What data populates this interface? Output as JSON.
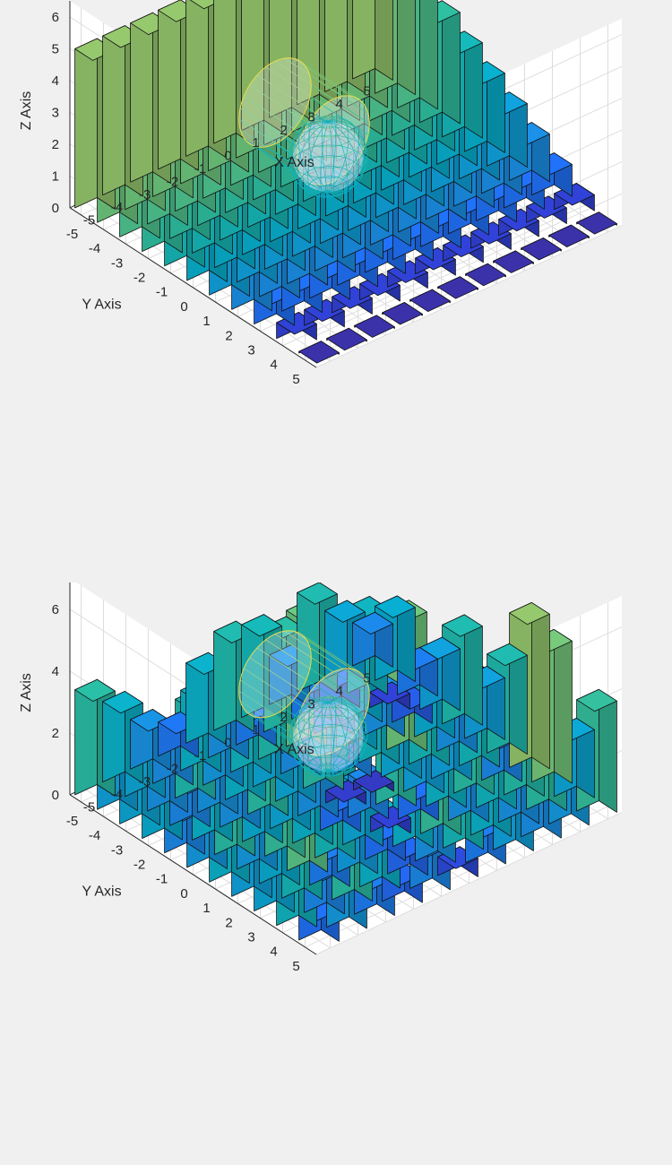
{
  "chart_data": [
    {
      "type": "bar3d",
      "xlabel": "X Axis",
      "ylabel": "Y Axis",
      "zlabel": "Z Axis",
      "x_ticks": [
        -5,
        -4,
        -3,
        -2,
        -1,
        0,
        1,
        2,
        3,
        4,
        5
      ],
      "y_ticks": [
        -5,
        -4,
        -3,
        -2,
        -1,
        0,
        1,
        2,
        3,
        4,
        5
      ],
      "z_ticks": [
        0,
        1,
        2,
        3,
        4,
        5,
        6
      ],
      "xlim": [
        -5.5,
        5.5
      ],
      "ylim": [
        -5.5,
        5.5
      ],
      "zlim": [
        0,
        6.5
      ],
      "grid": true,
      "heights_rule": "height grows with y: 0 at y=5 up to 5 at y=-5 (each bar row spans all x)",
      "row_heights_by_y": {
        "5": 0.05,
        "4": 0.5,
        "3": 1.0,
        "2": 1.5,
        "1": 2.0,
        "0": 2.5,
        "-1": 3.0,
        "-2": 3.5,
        "-3": 4.0,
        "-4": 4.5,
        "-5": 5.0
      },
      "cylinder": {
        "axis": "y",
        "center_x": -1.5,
        "center_z": 3.6,
        "radius": 1.3,
        "y_from": -1.3,
        "y_to": 1.3
      },
      "sphere": {
        "center": [
          -0.8,
          0.2,
          2.3
        ],
        "radius": 1.1
      }
    },
    {
      "type": "bar3d",
      "xlabel": "X Axis",
      "ylabel": "Y Axis",
      "zlabel": "Z Axis",
      "x_ticks": [
        -5,
        -4,
        -3,
        -2,
        -1,
        0,
        1,
        2,
        3,
        4,
        5
      ],
      "y_ticks": [
        -5,
        -4,
        -3,
        -2,
        -1,
        0,
        1,
        2,
        3,
        4,
        5
      ],
      "z_ticks": [
        0,
        2,
        4,
        6
      ],
      "xlim": [
        -5.5,
        5.5
      ],
      "ylim": [
        -5.5,
        5.5
      ],
      "zlim": [
        0,
        7
      ],
      "grid": true,
      "grid_heights_y_desc_x_asc": [
        [
          1.0,
          1.8,
          1.2,
          0.9,
          1.4,
          0.6,
          1.2,
          2.0,
          1.5,
          1.8,
          3.6
        ],
        [
          2.8,
          1.4,
          3.4,
          2.6,
          0.9,
          1.6,
          3.0,
          2.6,
          1.6,
          3.4,
          2.2
        ],
        [
          2.2,
          3.0,
          1.2,
          1.9,
          1.0,
          2.6,
          3.6,
          1.6,
          2.8,
          3.3,
          4.6
        ],
        [
          2.0,
          2.4,
          4.2,
          3.0,
          2.2,
          0.5,
          1.0,
          2.7,
          3.4,
          1.4,
          5.0
        ],
        [
          2.6,
          1.8,
          3.6,
          2.6,
          1.0,
          1.4,
          3.4,
          2.0,
          2.0,
          2.9,
          3.2
        ],
        [
          1.8,
          3.4,
          2.4,
          2.2,
          1.6,
          0.4,
          0.3,
          2.2,
          3.0,
          1.6,
          2.0
        ],
        [
          1.4,
          2.6,
          1.6,
          3.4,
          2.2,
          3.4,
          1.4,
          2.8,
          4.5,
          2.4,
          3.2
        ],
        [
          2.4,
          1.4,
          1.7,
          2.6,
          2.2,
          1.5,
          2.6,
          2.4,
          1.6,
          0.8,
          2.0
        ],
        [
          2.2,
          1.6,
          3.2,
          1.8,
          2.8,
          3.2,
          4.4,
          1.2,
          2.4,
          0.5,
          1.2
        ],
        [
          2.0,
          2.2,
          1.5,
          2.6,
          1.6,
          1.2,
          3.4,
          1.2,
          1.0,
          2.8,
          2.4
        ],
        [
          3.4,
          2.6,
          1.6,
          1.1,
          2.6,
          3.2,
          3.0,
          1.6,
          3.2,
          2.2,
          1.4
        ]
      ],
      "cylinder": {
        "axis": "y",
        "center_x": -1.5,
        "center_z": 4.2,
        "radius": 1.3,
        "y_from": -1.3,
        "y_to": 1.3
      },
      "sphere": {
        "center": [
          -0.8,
          0.2,
          2.6
        ],
        "radius": 1.1
      }
    }
  ],
  "colors": {
    "background": "#f0f0f0",
    "grid": "#dddddd",
    "text": "#262626",
    "edge": "#111111",
    "colormap": [
      "#3a2e9e",
      "#2f3fd0",
      "#1f6ef0",
      "#1a8be0",
      "#0f9dd6",
      "#08aac8",
      "#15b3b3",
      "#2db99c",
      "#4cbf8c",
      "#6cc27a",
      "#90c169"
    ]
  }
}
